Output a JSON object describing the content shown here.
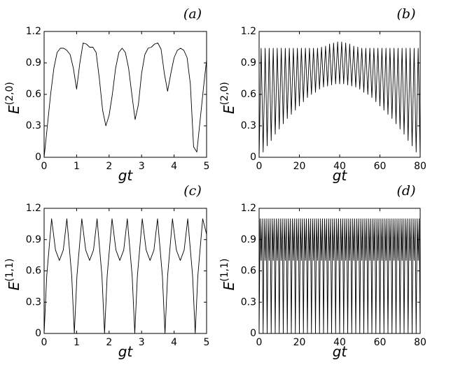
{
  "chart_data": [
    {
      "type": "line",
      "panel": "(a)",
      "xlabel": "gt",
      "ylabel": "E",
      "ylabel_superscript": "(2,0)",
      "xlim": [
        0,
        5
      ],
      "ylim": [
        0,
        1.2
      ],
      "xticks": [
        0,
        1,
        2,
        3,
        4,
        5
      ],
      "yticks": [
        0,
        0.3,
        0.6,
        0.9,
        1.2
      ],
      "color": "#000000",
      "x": [
        0,
        0.1,
        0.2,
        0.3,
        0.4,
        0.5,
        0.6,
        0.7,
        0.8,
        0.9,
        1,
        1.1,
        1.2,
        1.3,
        1.4,
        1.5,
        1.6,
        1.7,
        1.8,
        1.9,
        2,
        2.1,
        2.2,
        2.3,
        2.4,
        2.5,
        2.6,
        2.7,
        2.8,
        2.9,
        3,
        3.1,
        3.2,
        3.3,
        3.4,
        3.5,
        3.6,
        3.7,
        3.8,
        3.9,
        4,
        4.1,
        4.2,
        4.3,
        4.4,
        4.5,
        4.6,
        4.7,
        4.8,
        4.9,
        5
      ],
      "values": [
        0,
        0.3,
        0.6,
        0.85,
        1,
        1.04,
        1.04,
        1.02,
        0.98,
        0.85,
        0.65,
        0.9,
        1.09,
        1.08,
        1.05,
        1.05,
        1,
        0.75,
        0.45,
        0.3,
        0.4,
        0.6,
        0.85,
        1,
        1.04,
        1,
        0.85,
        0.6,
        0.36,
        0.5,
        0.8,
        0.98,
        1.04,
        1.05,
        1.08,
        1.09,
        1.03,
        0.8,
        0.63,
        0.8,
        0.95,
        1.02,
        1.04,
        1.02,
        0.95,
        0.7,
        0.1,
        0.05,
        0.35,
        0.65,
        0.93
      ]
    },
    {
      "type": "line",
      "panel": "(b)",
      "xlabel": "gt",
      "ylabel": "E",
      "ylabel_superscript": "(2,0)",
      "xlim": [
        0,
        80
      ],
      "ylim": [
        0,
        1.2
      ],
      "xticks": [
        0,
        20,
        40,
        60,
        80
      ],
      "yticks": [
        0,
        0.3,
        0.6,
        0.9,
        1.2
      ],
      "color": "#000000",
      "x": [
        0,
        1,
        2,
        3,
        4,
        5,
        6,
        7,
        8,
        9,
        10,
        11,
        12,
        13,
        14,
        15,
        16,
        17,
        18,
        19,
        20,
        21,
        22,
        23,
        24,
        25,
        26,
        27,
        28,
        29,
        30,
        31,
        32,
        33,
        34,
        35,
        36,
        37,
        38,
        39,
        40,
        41,
        42,
        43,
        44,
        45,
        46,
        47,
        48,
        49,
        50,
        51,
        52,
        53,
        54,
        55,
        56,
        57,
        58,
        59,
        60,
        61,
        62,
        63,
        64,
        65,
        66,
        67,
        68,
        69,
        70,
        71,
        72,
        73,
        74,
        75,
        76,
        77,
        78,
        79,
        80
      ],
      "values": [
        0,
        1.04,
        0.05,
        1.04,
        0.11,
        1.04,
        0.16,
        1.04,
        0.22,
        1.04,
        0.27,
        1.04,
        0.32,
        1.04,
        0.37,
        1.04,
        0.41,
        1.04,
        0.45,
        1.04,
        0.49,
        1.04,
        0.53,
        1.04,
        0.57,
        1.04,
        0.6,
        1.04,
        0.62,
        1.04,
        0.65,
        1.05,
        0.67,
        1.06,
        0.68,
        1.08,
        0.69,
        1.09,
        0.7,
        1.1,
        0.7,
        1.1,
        0.7,
        1.09,
        0.69,
        1.08,
        0.68,
        1.06,
        0.67,
        1.05,
        0.65,
        1.04,
        0.62,
        1.04,
        0.6,
        1.04,
        0.57,
        1.04,
        0.53,
        1.04,
        0.49,
        1.04,
        0.45,
        1.04,
        0.41,
        1.04,
        0.37,
        1.04,
        0.32,
        1.04,
        0.27,
        1.04,
        0.22,
        1.04,
        0.16,
        1.04,
        0.11,
        1.04,
        0.05,
        1.04,
        0
      ]
    },
    {
      "type": "line",
      "panel": "(c)",
      "xlabel": "gt",
      "ylabel": "E",
      "ylabel_superscript": "(1,1)",
      "xlim": [
        0,
        5
      ],
      "ylim": [
        0,
        1.2
      ],
      "xticks": [
        0,
        1,
        2,
        3,
        4,
        5
      ],
      "yticks": [
        0,
        0.3,
        0.6,
        0.9,
        1.2
      ],
      "color": "#000000",
      "x": [
        0,
        0.08,
        0.23,
        0.35,
        0.47,
        0.59,
        0.7,
        0.85,
        0.93,
        1.01,
        1.16,
        1.28,
        1.4,
        1.52,
        1.63,
        1.78,
        1.86,
        1.94,
        2.09,
        2.21,
        2.33,
        2.45,
        2.56,
        2.71,
        2.79,
        2.87,
        3.02,
        3.14,
        3.26,
        3.38,
        3.49,
        3.64,
        3.72,
        3.8,
        3.95,
        4.07,
        4.19,
        4.31,
        4.42,
        4.57,
        4.65,
        4.73,
        4.88,
        5
      ],
      "values": [
        0,
        0.55,
        1.1,
        0.8,
        0.7,
        0.8,
        1.1,
        0.55,
        0,
        0.55,
        1.1,
        0.8,
        0.7,
        0.8,
        1.1,
        0.55,
        0,
        0.55,
        1.1,
        0.8,
        0.7,
        0.8,
        1.1,
        0.55,
        0,
        0.55,
        1.1,
        0.8,
        0.7,
        0.8,
        1.1,
        0.55,
        0,
        0.55,
        1.1,
        0.8,
        0.7,
        0.8,
        1.1,
        0.55,
        0,
        0.55,
        1.1,
        0.95
      ]
    },
    {
      "type": "line",
      "panel": "(d)",
      "xlabel": "gt",
      "ylabel": "E",
      "ylabel_superscript": "(1,1)",
      "xlim": [
        0,
        80
      ],
      "ylim": [
        0,
        1.2
      ],
      "xticks": [
        0,
        20,
        40,
        60,
        80
      ],
      "yticks": [
        0,
        0.3,
        0.6,
        0.9,
        1.2
      ],
      "color": "#000000",
      "x": [
        0,
        0.5,
        1,
        1.5,
        2,
        2.5,
        3,
        3.5,
        4,
        4.5,
        5,
        5.5,
        6,
        6.5,
        7,
        7.5,
        8,
        8.5,
        9,
        9.5,
        10,
        10.5,
        11,
        11.5,
        12,
        12.5,
        13,
        13.5,
        14,
        14.5,
        15,
        15.5,
        16,
        16.5,
        17,
        17.5,
        18,
        18.5,
        19,
        19.5,
        20,
        20.5,
        21,
        21.5,
        22,
        22.5,
        23,
        23.5,
        24,
        24.5,
        25,
        25.5,
        26,
        26.5,
        27,
        27.5,
        28,
        28.5,
        29,
        29.5,
        30,
        30.5,
        31,
        31.5,
        32,
        32.5,
        33,
        33.5,
        34,
        34.5,
        35,
        35.5,
        36,
        36.5,
        37,
        37.5,
        38,
        38.5,
        39,
        39.5,
        40,
        40.5,
        41,
        41.5,
        42,
        42.5,
        43,
        43.5,
        44,
        44.5,
        45,
        45.5,
        46,
        46.5,
        47,
        47.5,
        48,
        48.5,
        49,
        49.5,
        50,
        50.5,
        51,
        51.5,
        52,
        52.5,
        53,
        53.5,
        54,
        54.5,
        55,
        55.5,
        56,
        56.5,
        57,
        57.5,
        58,
        58.5,
        59,
        59.5,
        60,
        60.5,
        61,
        61.5,
        62,
        62.5,
        63,
        63.5,
        64,
        64.5,
        65,
        65.5,
        66,
        66.5,
        67,
        67.5,
        68,
        68.5,
        69,
        69.5,
        70,
        70.5,
        71,
        71.5,
        72,
        72.5,
        73,
        73.5,
        74,
        74.5,
        75,
        75.5,
        76,
        76.5,
        77,
        77.5,
        78,
        78.5,
        79,
        79.5,
        80
      ],
      "values": [
        0,
        1.1,
        0.7,
        1.1,
        0,
        1.1,
        0.7,
        1.1,
        0,
        1.1,
        0.7,
        1.1,
        0,
        1.1,
        0.7,
        1.1,
        0,
        1.1,
        0.7,
        1.1,
        0,
        1.1,
        0.7,
        1.1,
        0,
        1.1,
        0.7,
        1.1,
        0,
        1.1,
        0.7,
        1.1,
        0,
        1.1,
        0.7,
        1.1,
        0,
        1.1,
        0.7,
        1.1,
        0,
        1.1,
        0.7,
        1.1,
        0,
        1.1,
        0.7,
        1.1,
        0,
        1.1,
        0.7,
        1.1,
        0,
        1.1,
        0.7,
        1.1,
        0,
        1.1,
        0.7,
        1.1,
        0,
        1.1,
        0.7,
        1.1,
        0,
        1.1,
        0.7,
        1.1,
        0,
        1.1,
        0.7,
        1.1,
        0,
        1.1,
        0.7,
        1.1,
        0,
        1.1,
        0.7,
        1.1,
        0,
        1.1,
        0.7,
        1.1,
        0,
        1.1,
        0.7,
        1.1,
        0,
        1.1,
        0.7,
        1.1,
        0,
        1.1,
        0.7,
        1.1,
        0,
        1.1,
        0.7,
        1.1,
        0,
        1.1,
        0.7,
        1.1,
        0,
        1.1,
        0.7,
        1.1,
        0,
        1.1,
        0.7,
        1.1,
        0,
        1.1,
        0.7,
        1.1,
        0,
        1.1,
        0.7,
        1.1,
        0,
        1.1,
        0.7,
        1.1,
        0,
        1.1,
        0.7,
        1.1,
        0,
        1.1,
        0.7,
        1.1,
        0,
        1.1,
        0.7,
        1.1,
        0,
        1.1,
        0.7,
        1.1,
        0,
        1.1,
        0.7,
        1.1,
        0,
        1.1,
        0.7,
        1.1,
        0,
        1.1,
        0.7,
        1.1,
        0,
        1.1,
        0.7,
        1.1,
        0,
        1.1,
        0.7,
        1.1,
        0
      ]
    }
  ]
}
